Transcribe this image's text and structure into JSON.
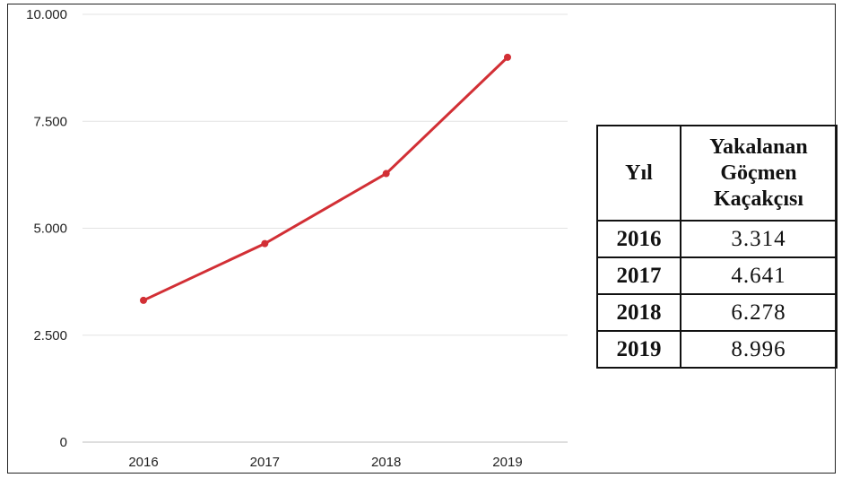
{
  "chart_data": {
    "type": "line",
    "categories": [
      "2016",
      "2017",
      "2018",
      "2019"
    ],
    "series": [
      {
        "values": [
          3314,
          4641,
          6278,
          8996
        ],
        "color": "#d22f35"
      }
    ],
    "ylim": [
      0,
      10000
    ],
    "yticks": [
      0,
      2500,
      5000,
      7500,
      10000
    ],
    "ytick_labels": [
      "0",
      "2.500",
      "5.000",
      "7.500",
      "10.000"
    ],
    "grid": true,
    "title": "",
    "xlabel": "",
    "ylabel": ""
  },
  "table": {
    "header_year": "Yıl",
    "header_count_lines": [
      "Yakalanan",
      "Göçmen",
      "Kaçakçısı"
    ],
    "rows": [
      {
        "year": "2016",
        "value": "3.314"
      },
      {
        "year": "2017",
        "value": "4.641"
      },
      {
        "year": "2018",
        "value": "6.278"
      },
      {
        "year": "2019",
        "value": "8.996"
      }
    ]
  }
}
